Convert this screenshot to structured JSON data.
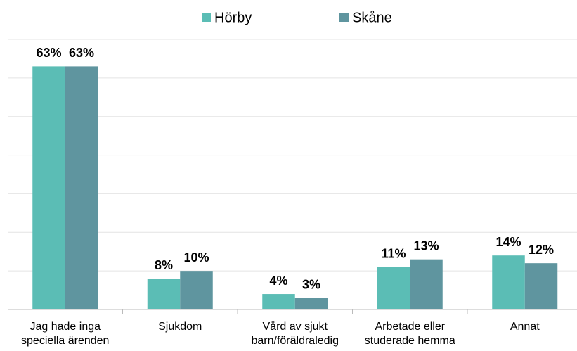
{
  "chart_data": {
    "type": "bar",
    "categories": [
      "Jag hade inga speciella ärenden",
      "Sjukdom",
      "Vård av sjukt barn/föräldraledig",
      "Arbetade eller studerade hemma",
      "Annat"
    ],
    "series": [
      {
        "name": "Hörby",
        "color": "#5bbdb5",
        "values": [
          63,
          8,
          4,
          11,
          14
        ],
        "value_labels": [
          "63%",
          "8%",
          "4%",
          "11%",
          "14%"
        ]
      },
      {
        "name": "Skåne",
        "color": "#5f959f",
        "values": [
          63,
          10,
          3,
          13,
          12
        ],
        "value_labels": [
          "63%",
          "10%",
          "3%",
          "13%",
          "12%"
        ]
      }
    ],
    "ylim": [
      0,
      70
    ],
    "yticks": [
      0,
      10,
      20,
      30,
      40,
      50,
      60,
      70
    ],
    "grid": true,
    "legend": "top"
  }
}
